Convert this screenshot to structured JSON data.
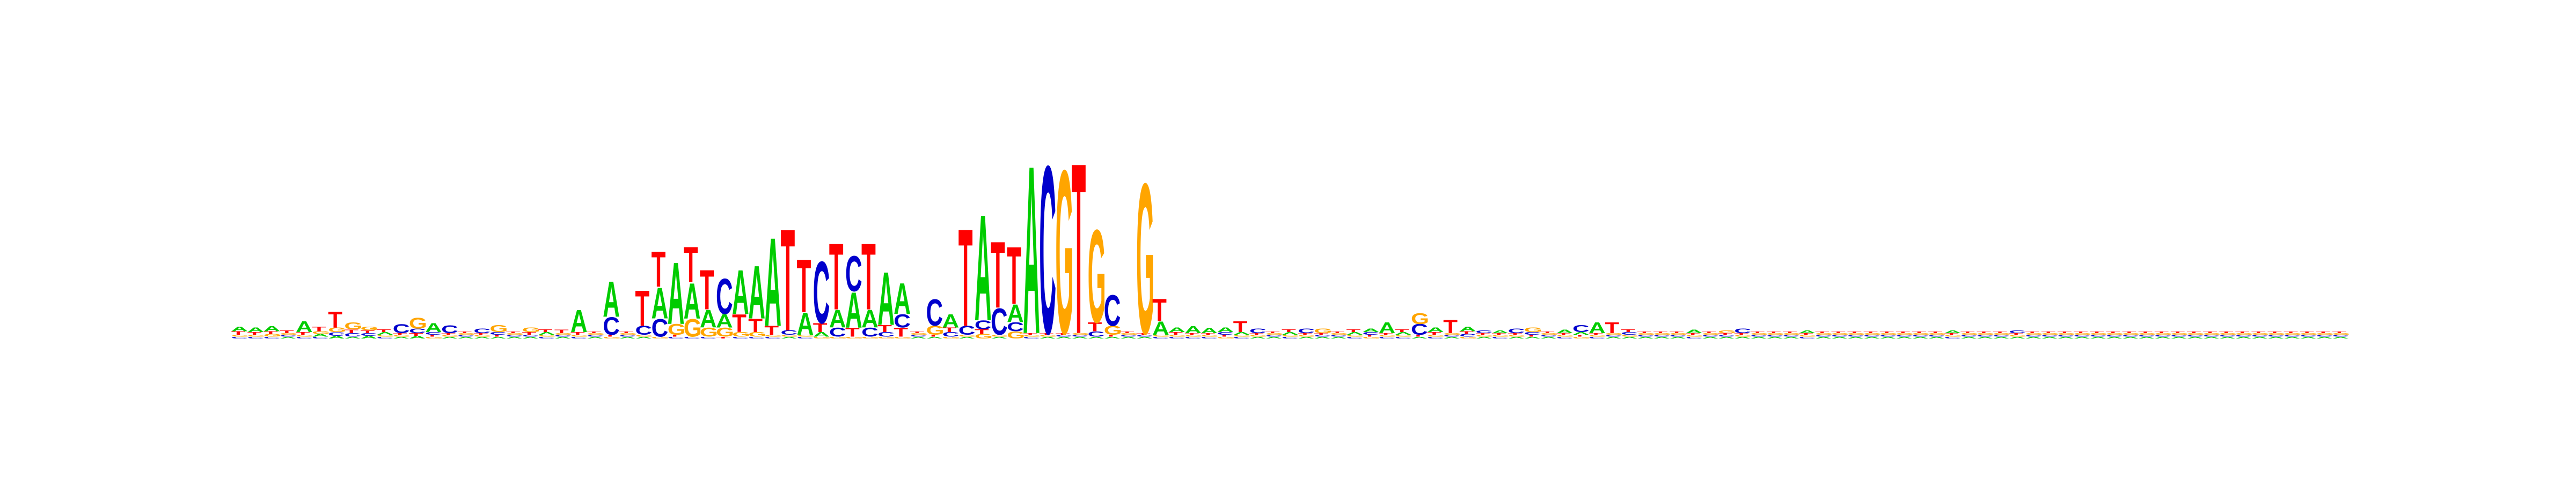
{
  "chart_data": {
    "type": "sequence-logo",
    "title": "",
    "xlabel": "",
    "ylabel": "",
    "alphabet": [
      "A",
      "C",
      "G",
      "T"
    ],
    "colors": {
      "A": "#00cc00",
      "C": "#0000cc",
      "G": "#ffa500",
      "T": "#ff0000"
    },
    "max_bits": 2,
    "positions": [
      {
        "A": 0.05,
        "C": 0.02,
        "G": 0.02,
        "T": 0.04
      },
      {
        "A": 0.05,
        "C": 0.02,
        "G": 0.02,
        "T": 0.03
      },
      {
        "A": 0.06,
        "C": 0.02,
        "G": 0.03,
        "T": 0.03
      },
      {
        "A": 0.02,
        "C": 0.02,
        "G": 0.02,
        "T": 0.03
      },
      {
        "A": 0.12,
        "C": 0.02,
        "G": 0.02,
        "T": 0.03
      },
      {
        "A": 0.03,
        "C": 0.02,
        "G": 0.03,
        "T": 0.05
      },
      {
        "A": 0.03,
        "C": 0.04,
        "G": 0.05,
        "T": 0.18
      },
      {
        "A": 0.02,
        "C": 0.04,
        "G": 0.08,
        "T": 0.04
      },
      {
        "A": 0.03,
        "C": 0.03,
        "G": 0.04,
        "T": 0.03
      },
      {
        "A": 0.03,
        "C": 0.02,
        "G": 0.02,
        "T": 0.03
      },
      {
        "A": 0.02,
        "C": 0.1,
        "G": 0.02,
        "T": 0.02
      },
      {
        "A": 0.03,
        "C": 0.05,
        "G": 0.12,
        "T": 0.03
      },
      {
        "A": 0.1,
        "C": 0.03,
        "G": 0.02,
        "T": 0.02
      },
      {
        "A": 0.02,
        "C": 0.09,
        "G": 0.02,
        "T": 0.02
      },
      {
        "A": 0.02,
        "C": 0.02,
        "G": 0.02,
        "T": 0.02
      },
      {
        "A": 0.02,
        "C": 0.05,
        "G": 0.02,
        "T": 0.02
      },
      {
        "A": 0.02,
        "C": 0.03,
        "G": 0.08,
        "T": 0.02
      },
      {
        "A": 0.02,
        "C": 0.02,
        "G": 0.02,
        "T": 0.02
      },
      {
        "A": 0.02,
        "C": 0.02,
        "G": 0.05,
        "T": 0.03
      },
      {
        "A": 0.03,
        "C": 0.02,
        "G": 0.02,
        "T": 0.03
      },
      {
        "A": 0.02,
        "C": 0.02,
        "G": 0.02,
        "T": 0.04
      },
      {
        "A": 0.25,
        "C": 0.02,
        "G": 0.02,
        "T": 0.03
      },
      {
        "A": 0.02,
        "C": 0.02,
        "G": 0.02,
        "T": 0.02
      },
      {
        "A": 0.4,
        "C": 0.2,
        "G": 0.02,
        "T": 0.02
      },
      {
        "A": 0.02,
        "C": 0.02,
        "G": 0.02,
        "T": 0.02
      },
      {
        "A": 0.02,
        "C": 0.1,
        "G": 0.02,
        "T": 0.4
      },
      {
        "A": 0.35,
        "C": 0.2,
        "G": 0.02,
        "T": 0.4
      },
      {
        "A": 0.7,
        "C": 0.02,
        "G": 0.12,
        "T": 0.02
      },
      {
        "A": 0.4,
        "C": 0.02,
        "G": 0.2,
        "T": 0.4
      },
      {
        "A": 0.2,
        "C": 0.02,
        "G": 0.1,
        "T": 0.45
      },
      {
        "A": 0.15,
        "C": 0.4,
        "G": 0.1,
        "T": 0.02
      },
      {
        "A": 0.5,
        "C": 0.02,
        "G": 0.05,
        "T": 0.2
      },
      {
        "A": 0.6,
        "C": 0.02,
        "G": 0.05,
        "T": 0.15
      },
      {
        "A": 1.0,
        "C": 0.02,
        "G": 0.02,
        "T": 0.1
      },
      {
        "A": 0.02,
        "C": 0.05,
        "G": 0.02,
        "T": 1.15
      },
      {
        "A": 0.25,
        "C": 0.02,
        "G": 0.02,
        "T": 0.6
      },
      {
        "A": 0.05,
        "C": 0.7,
        "G": 0.02,
        "T": 0.1
      },
      {
        "A": 0.2,
        "C": 0.1,
        "G": 0.02,
        "T": 0.75
      },
      {
        "A": 0.4,
        "C": 0.4,
        "G": 0.02,
        "T": 0.1
      },
      {
        "A": 0.2,
        "C": 0.1,
        "G": 0.02,
        "T": 0.75
      },
      {
        "A": 0.6,
        "C": 0.05,
        "G": 0.02,
        "T": 0.08
      },
      {
        "A": 0.35,
        "C": 0.15,
        "G": 0.02,
        "T": 0.1
      },
      {
        "A": 0.02,
        "C": 0.02,
        "G": 0.02,
        "T": 0.02
      },
      {
        "A": 0.02,
        "C": 0.3,
        "G": 0.1,
        "T": 0.02
      },
      {
        "A": 0.15,
        "C": 0.05,
        "G": 0.02,
        "T": 0.05
      },
      {
        "A": 0.02,
        "C": 0.1,
        "G": 0.02,
        "T": 1.1
      },
      {
        "A": 1.2,
        "C": 0.1,
        "G": 0.05,
        "T": 0.05
      },
      {
        "A": 0.02,
        "C": 0.3,
        "G": 0.02,
        "T": 0.75
      },
      {
        "A": 0.2,
        "C": 0.1,
        "G": 0.08,
        "T": 0.65
      },
      {
        "A": 1.9,
        "C": 0.02,
        "G": 0.02,
        "T": 0.02
      },
      {
        "A": 0.02,
        "C": 1.9,
        "G": 0.02,
        "T": 0.02
      },
      {
        "A": 0.02,
        "C": 0.02,
        "G": 1.85,
        "T": 0.02
      },
      {
        "A": 0.02,
        "C": 0.02,
        "G": 0.02,
        "T": 1.93
      },
      {
        "A": 0.02,
        "C": 0.06,
        "G": 1.05,
        "T": 0.1
      },
      {
        "A": 0.02,
        "C": 0.35,
        "G": 0.1,
        "T": 0.02
      },
      {
        "A": 0.02,
        "C": 0.02,
        "G": 0.02,
        "T": 0.02
      },
      {
        "A": 0.02,
        "C": 0.02,
        "G": 1.7,
        "T": 0.02
      },
      {
        "A": 0.15,
        "C": 0.02,
        "G": 0.02,
        "T": 0.25
      },
      {
        "A": 0.05,
        "C": 0.02,
        "G": 0.02,
        "T": 0.03
      },
      {
        "A": 0.08,
        "C": 0.02,
        "G": 0.02,
        "T": 0.02
      },
      {
        "A": 0.06,
        "C": 0.02,
        "G": 0.02,
        "T": 0.02
      },
      {
        "A": 0.05,
        "C": 0.03,
        "G": 0.02,
        "T": 0.02
      },
      {
        "A": 0.03,
        "C": 0.02,
        "G": 0.02,
        "T": 0.12
      },
      {
        "A": 0.02,
        "C": 0.05,
        "G": 0.02,
        "T": 0.02
      },
      {
        "A": 0.02,
        "C": 0.02,
        "G": 0.02,
        "T": 0.02
      },
      {
        "A": 0.03,
        "C": 0.02,
        "G": 0.02,
        "T": 0.03
      },
      {
        "A": 0.02,
        "C": 0.05,
        "G": 0.02,
        "T": 0.02
      },
      {
        "A": 0.02,
        "C": 0.02,
        "G": 0.05,
        "T": 0.02
      },
      {
        "A": 0.02,
        "C": 0.02,
        "G": 0.02,
        "T": 0.02
      },
      {
        "A": 0.03,
        "C": 0.02,
        "G": 0.02,
        "T": 0.03
      },
      {
        "A": 0.04,
        "C": 0.03,
        "G": 0.02,
        "T": 0.02
      },
      {
        "A": 0.12,
        "C": 0.02,
        "G": 0.02,
        "T": 0.02
      },
      {
        "A": 0.03,
        "C": 0.02,
        "G": 0.02,
        "T": 0.03
      },
      {
        "A": 0.02,
        "C": 0.12,
        "G": 0.12,
        "T": 0.02
      },
      {
        "A": 0.05,
        "C": 0.02,
        "G": 0.02,
        "T": 0.03
      },
      {
        "A": 0.02,
        "C": 0.02,
        "G": 0.02,
        "T": 0.15
      },
      {
        "A": 0.05,
        "C": 0.03,
        "G": 0.02,
        "T": 0.03
      },
      {
        "A": 0.02,
        "C": 0.03,
        "G": 0.02,
        "T": 0.02
      },
      {
        "A": 0.03,
        "C": 0.02,
        "G": 0.02,
        "T": 0.02
      },
      {
        "A": 0.02,
        "C": 0.05,
        "G": 0.02,
        "T": 0.02
      },
      {
        "A": 0.02,
        "C": 0.03,
        "G": 0.05,
        "T": 0.02
      },
      {
        "A": 0.02,
        "C": 0.02,
        "G": 0.02,
        "T": 0.02
      },
      {
        "A": 0.04,
        "C": 0.02,
        "G": 0.02,
        "T": 0.02
      },
      {
        "A": 0.03,
        "C": 0.08,
        "G": 0.02,
        "T": 0.02
      },
      {
        "A": 0.12,
        "C": 0.02,
        "G": 0.02,
        "T": 0.02
      },
      {
        "A": 0.02,
        "C": 0.02,
        "G": 0.02,
        "T": 0.12
      },
      {
        "A": 0.02,
        "C": 0.03,
        "G": 0.02,
        "T": 0.03
      },
      {
        "A": 0.02,
        "C": 0.02,
        "G": 0.02,
        "T": 0.02
      },
      {
        "A": 0.02,
        "C": 0.02,
        "G": 0.02,
        "T": 0.02
      },
      {
        "A": 0.02,
        "C": 0.02,
        "G": 0.02,
        "T": 0.02
      },
      {
        "A": 0.04,
        "C": 0.02,
        "G": 0.02,
        "T": 0.02
      },
      {
        "A": 0.02,
        "C": 0.02,
        "G": 0.02,
        "T": 0.02
      },
      {
        "A": 0.02,
        "C": 0.02,
        "G": 0.03,
        "T": 0.02
      },
      {
        "A": 0.02,
        "C": 0.05,
        "G": 0.02,
        "T": 0.02
      },
      {
        "A": 0.02,
        "C": 0.02,
        "G": 0.02,
        "T": 0.02
      },
      {
        "A": 0.02,
        "C": 0.02,
        "G": 0.02,
        "T": 0.02
      },
      {
        "A": 0.02,
        "C": 0.02,
        "G": 0.02,
        "T": 0.02
      },
      {
        "A": 0.03,
        "C": 0.02,
        "G": 0.02,
        "T": 0.02
      },
      {
        "A": 0.02,
        "C": 0.02,
        "G": 0.02,
        "T": 0.02
      },
      {
        "A": 0.02,
        "C": 0.02,
        "G": 0.02,
        "T": 0.02
      },
      {
        "A": 0.02,
        "C": 0.02,
        "G": 0.02,
        "T": 0.02
      },
      {
        "A": 0.02,
        "C": 0.02,
        "G": 0.02,
        "T": 0.02
      },
      {
        "A": 0.02,
        "C": 0.02,
        "G": 0.02,
        "T": 0.02
      },
      {
        "A": 0.02,
        "C": 0.02,
        "G": 0.02,
        "T": 0.02
      },
      {
        "A": 0.02,
        "C": 0.02,
        "G": 0.02,
        "T": 0.02
      },
      {
        "A": 0.02,
        "C": 0.02,
        "G": 0.02,
        "T": 0.02
      },
      {
        "A": 0.03,
        "C": 0.02,
        "G": 0.02,
        "T": 0.02
      },
      {
        "A": 0.02,
        "C": 0.02,
        "G": 0.02,
        "T": 0.02
      },
      {
        "A": 0.02,
        "C": 0.02,
        "G": 0.02,
        "T": 0.02
      },
      {
        "A": 0.02,
        "C": 0.02,
        "G": 0.02,
        "T": 0.02
      },
      {
        "A": 0.02,
        "C": 0.03,
        "G": 0.02,
        "T": 0.02
      },
      {
        "A": 0.02,
        "C": 0.02,
        "G": 0.02,
        "T": 0.02
      },
      {
        "A": 0.02,
        "C": 0.02,
        "G": 0.02,
        "T": 0.02
      },
      {
        "A": 0.02,
        "C": 0.02,
        "G": 0.02,
        "T": 0.02
      },
      {
        "A": 0.02,
        "C": 0.02,
        "G": 0.02,
        "T": 0.02
      },
      {
        "A": 0.02,
        "C": 0.02,
        "G": 0.02,
        "T": 0.02
      },
      {
        "A": 0.02,
        "C": 0.02,
        "G": 0.02,
        "T": 0.02
      },
      {
        "A": 0.02,
        "C": 0.02,
        "G": 0.02,
        "T": 0.02
      },
      {
        "A": 0.02,
        "C": 0.02,
        "G": 0.02,
        "T": 0.02
      },
      {
        "A": 0.02,
        "C": 0.02,
        "G": 0.02,
        "T": 0.02
      },
      {
        "A": 0.02,
        "C": 0.02,
        "G": 0.02,
        "T": 0.02
      },
      {
        "A": 0.02,
        "C": 0.02,
        "G": 0.02,
        "T": 0.02
      },
      {
        "A": 0.02,
        "C": 0.02,
        "G": 0.02,
        "T": 0.02
      },
      {
        "A": 0.02,
        "C": 0.02,
        "G": 0.02,
        "T": 0.02
      },
      {
        "A": 0.02,
        "C": 0.02,
        "G": 0.02,
        "T": 0.02
      },
      {
        "A": 0.02,
        "C": 0.02,
        "G": 0.02,
        "T": 0.02
      },
      {
        "A": 0.02,
        "C": 0.02,
        "G": 0.02,
        "T": 0.02
      },
      {
        "A": 0.02,
        "C": 0.02,
        "G": 0.02,
        "T": 0.02
      },
      {
        "A": 0.02,
        "C": 0.02,
        "G": 0.02,
        "T": 0.02
      },
      {
        "A": 0.02,
        "C": 0.02,
        "G": 0.02,
        "T": 0.02
      },
      {
        "A": 0.02,
        "C": 0.02,
        "G": 0.02,
        "T": 0.02
      }
    ]
  }
}
